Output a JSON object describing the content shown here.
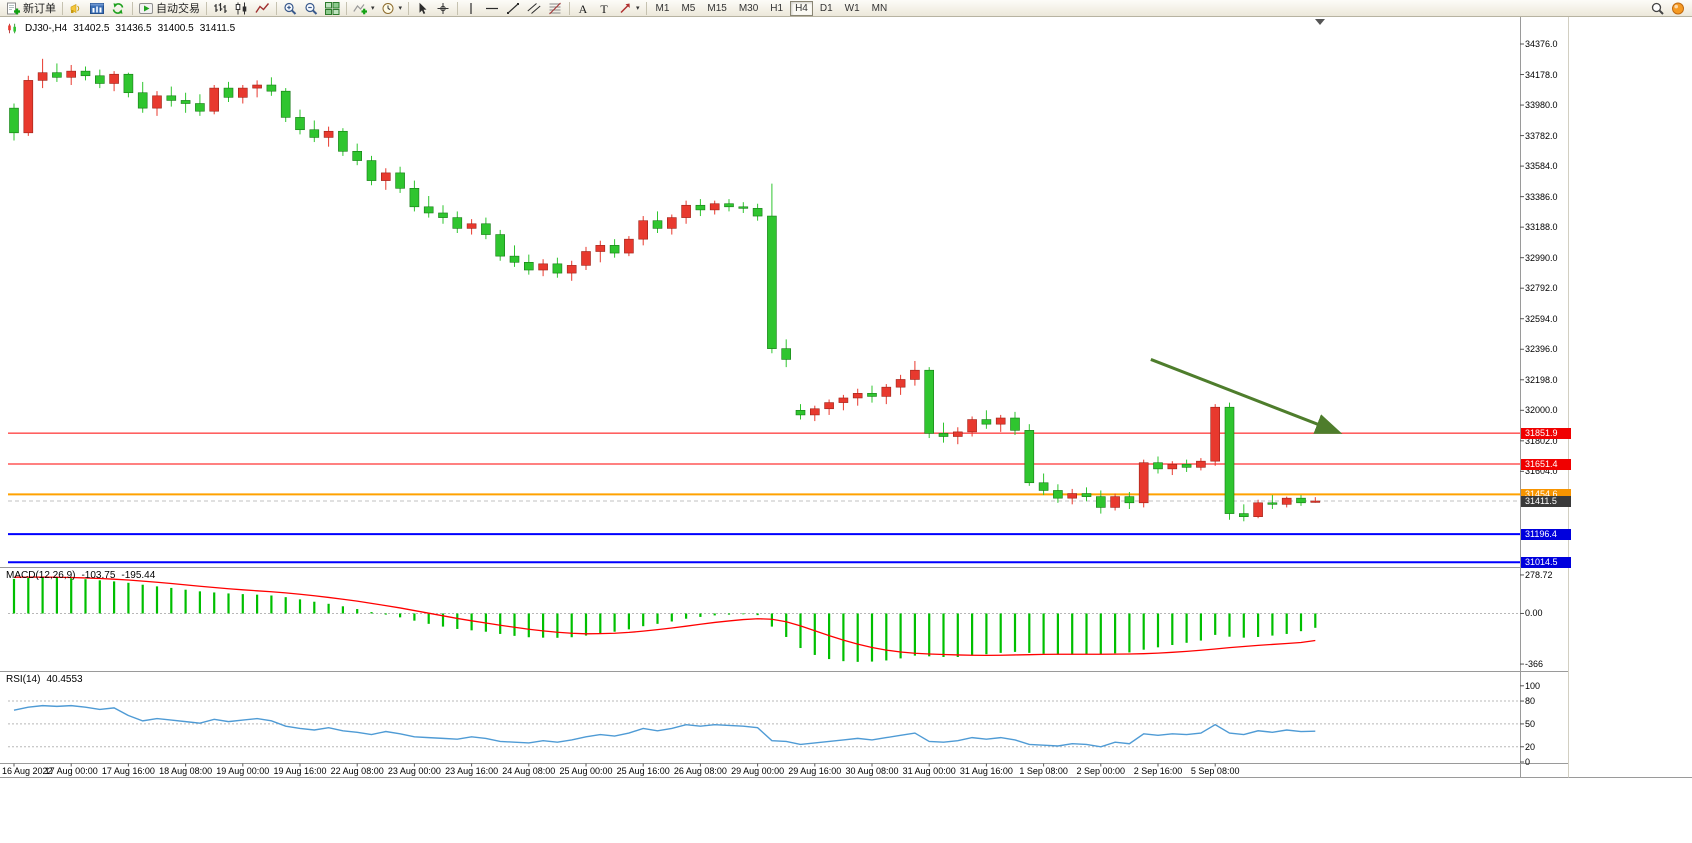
{
  "toolbar": {
    "new_order_label": "新订单",
    "auto_trading_label": "自动交易",
    "left_icons": [
      "megaphone-icon",
      "chart-window-icon",
      "refresh-icon"
    ],
    "chart_type_icons": [
      "ohlc-bars-icon",
      "candlestick-icon",
      "line-chart-icon"
    ],
    "zoom_icons": [
      "zoom-in-icon",
      "zoom-out-icon",
      "tile-windows-icon"
    ],
    "tool_icons": [
      "indicators-icon",
      "clock-icon",
      "|",
      "cursor-icon",
      "crosshair-icon",
      "|",
      "vertical-line-icon",
      "horizontal-line-icon",
      "trendline-icon",
      "channel-icon",
      "fibonacci-icon",
      "|",
      "text-icon",
      "label-icon",
      "arrows-icon"
    ],
    "caret_icons": [
      "indicators-icon",
      "clock-icon",
      "arrows-icon"
    ],
    "timeframes": [
      "M1",
      "M5",
      "M15",
      "M30",
      "H1",
      "H4",
      "D1",
      "W1",
      "MN"
    ],
    "active_timeframe": "H4",
    "right_icons": [
      "search-icon",
      "community-icon"
    ]
  },
  "chart_header": {
    "symbol_period": "DJ30-,H4",
    "open": "31402.5",
    "high": "31436.5",
    "low": "31400.5",
    "close": "31411.5"
  },
  "macd_header": {
    "name": "MACD(12,26,9)",
    "main_value": "-103.75",
    "signal_value": "-195.44"
  },
  "rsi_header": {
    "name": "RSI(14)",
    "value": "40.4553"
  },
  "chart_data": {
    "type": "candlestick",
    "symbol": "DJ30-",
    "period": "H4",
    "candles": [
      [
        33960,
        33990,
        33750,
        33800
      ],
      [
        33800,
        34170,
        33780,
        34140
      ],
      [
        34140,
        34280,
        34090,
        34190
      ],
      [
        34190,
        34250,
        34130,
        34160
      ],
      [
        34160,
        34240,
        34110,
        34200
      ],
      [
        34200,
        34230,
        34140,
        34170
      ],
      [
        34170,
        34210,
        34090,
        34120
      ],
      [
        34120,
        34200,
        34070,
        34180
      ],
      [
        34180,
        34190,
        34030,
        34060
      ],
      [
        34060,
        34130,
        33930,
        33960
      ],
      [
        33960,
        34070,
        33910,
        34040
      ],
      [
        34040,
        34100,
        33970,
        34010
      ],
      [
        34010,
        34060,
        33930,
        33990
      ],
      [
        33990,
        34050,
        33910,
        33940
      ],
      [
        33940,
        34110,
        33920,
        34090
      ],
      [
        34090,
        34130,
        34000,
        34030
      ],
      [
        34030,
        34110,
        33990,
        34090
      ],
      [
        34090,
        34140,
        34030,
        34110
      ],
      [
        34110,
        34160,
        34040,
        34070
      ],
      [
        34070,
        34090,
        33870,
        33900
      ],
      [
        33900,
        33950,
        33790,
        33820
      ],
      [
        33820,
        33880,
        33740,
        33770
      ],
      [
        33770,
        33840,
        33710,
        33810
      ],
      [
        33810,
        33830,
        33650,
        33680
      ],
      [
        33680,
        33730,
        33590,
        33620
      ],
      [
        33620,
        33650,
        33460,
        33490
      ],
      [
        33490,
        33570,
        33430,
        33540
      ],
      [
        33540,
        33580,
        33410,
        33440
      ],
      [
        33440,
        33490,
        33290,
        33320
      ],
      [
        33320,
        33390,
        33250,
        33280
      ],
      [
        33280,
        33330,
        33210,
        33250
      ],
      [
        33250,
        33290,
        33150,
        33180
      ],
      [
        33180,
        33240,
        33140,
        33210
      ],
      [
        33210,
        33250,
        33110,
        33140
      ],
      [
        33140,
        33170,
        32970,
        33000
      ],
      [
        33000,
        33070,
        32930,
        32960
      ],
      [
        32960,
        33010,
        32880,
        32910
      ],
      [
        32910,
        32980,
        32870,
        32950
      ],
      [
        32950,
        32990,
        32860,
        32890
      ],
      [
        32890,
        32970,
        32840,
        32940
      ],
      [
        32940,
        33060,
        32910,
        33030
      ],
      [
        33030,
        33100,
        32960,
        33070
      ],
      [
        33070,
        33110,
        32990,
        33020
      ],
      [
        33020,
        33130,
        33000,
        33110
      ],
      [
        33110,
        33260,
        33070,
        33230
      ],
      [
        33230,
        33290,
        33150,
        33180
      ],
      [
        33180,
        33270,
        33140,
        33250
      ],
      [
        33250,
        33360,
        33210,
        33330
      ],
      [
        33330,
        33370,
        33260,
        33300
      ],
      [
        33300,
        33360,
        33270,
        33340
      ],
      [
        33340,
        33370,
        33290,
        33320
      ],
      [
        33320,
        33350,
        33280,
        33310
      ],
      [
        33310,
        33340,
        33230,
        33260
      ],
      [
        33260,
        33470,
        32370,
        32400
      ],
      [
        32400,
        32460,
        32280,
        32330
      ],
      [
        32000,
        32040,
        31940,
        31970
      ],
      [
        31970,
        32030,
        31930,
        32010
      ],
      [
        32010,
        32070,
        31970,
        32050
      ],
      [
        32050,
        32100,
        32000,
        32080
      ],
      [
        32080,
        32140,
        32030,
        32110
      ],
      [
        32110,
        32160,
        32050,
        32090
      ],
      [
        32090,
        32170,
        32040,
        32150
      ],
      [
        32150,
        32230,
        32100,
        32200
      ],
      [
        32200,
        32320,
        32160,
        32260
      ],
      [
        32260,
        32280,
        31820,
        31850
      ],
      [
        31850,
        31920,
        31790,
        31830
      ],
      [
        31830,
        31890,
        31780,
        31860
      ],
      [
        31860,
        31960,
        31830,
        31940
      ],
      [
        31940,
        32000,
        31880,
        31910
      ],
      [
        31910,
        31970,
        31860,
        31950
      ],
      [
        31950,
        31990,
        31840,
        31870
      ],
      [
        31870,
        31910,
        31510,
        31530
      ],
      [
        31530,
        31590,
        31450,
        31480
      ],
      [
        31480,
        31520,
        31400,
        31430
      ],
      [
        31430,
        31490,
        31390,
        31460
      ],
      [
        31460,
        31500,
        31410,
        31440
      ],
      [
        31440,
        31480,
        31330,
        31370
      ],
      [
        31370,
        31460,
        31350,
        31440
      ],
      [
        31440,
        31470,
        31360,
        31400
      ],
      [
        31400,
        31680,
        31370,
        31660
      ],
      [
        31660,
        31700,
        31590,
        31620
      ],
      [
        31620,
        31670,
        31580,
        31650
      ],
      [
        31650,
        31680,
        31600,
        31630
      ],
      [
        31630,
        31690,
        31610,
        31670
      ],
      [
        31670,
        32040,
        31640,
        32020
      ],
      [
        32020,
        32050,
        31290,
        31330
      ],
      [
        31330,
        31390,
        31280,
        31310
      ],
      [
        31310,
        31420,
        31300,
        31400
      ],
      [
        31400,
        31450,
        31360,
        31390
      ],
      [
        31390,
        31440,
        31370,
        31430
      ],
      [
        31430,
        31450,
        31380,
        31400
      ],
      [
        31402.5,
        31436.5,
        31400.5,
        31411.5
      ]
    ],
    "time_labels": [
      "16 Aug 2022",
      "17 Aug 00:00",
      "17 Aug 16:00",
      "18 Aug 08:00",
      "19 Aug 00:00",
      "19 Aug 16:00",
      "22 Aug 08:00",
      "23 Aug 00:00",
      "23 Aug 16:00",
      "24 Aug 08:00",
      "25 Aug 00:00",
      "25 Aug 16:00",
      "26 Aug 08:00",
      "29 Aug 00:00",
      "29 Aug 16:00",
      "30 Aug 08:00",
      "31 Aug 00:00",
      "31 Aug 16:00",
      "1 Sep 08:00",
      "2 Sep 00:00",
      "2 Sep 16:00",
      "5 Sep 08:00"
    ],
    "label_every_n_candles": 4,
    "price_ticks": [
      "34376.0",
      "34178.0",
      "33980.0",
      "33782.0",
      "33584.0",
      "33386.0",
      "33188.0",
      "32990.0",
      "32792.0",
      "32594.0",
      "32396.0",
      "32198.0",
      "32000.0",
      "31802.0",
      "31604.0"
    ],
    "main_range": {
      "max": 34402,
      "min": 30990
    },
    "current_price": {
      "value": 31411.5,
      "label": "31411.5",
      "badge_color": "#3a3a3a"
    },
    "hlines": [
      {
        "price": 31851.9,
        "label": "31851.9",
        "color": "#ff0000",
        "badge_color": "#f00000",
        "width": 1
      },
      {
        "price": 31651.4,
        "label": "31651.4",
        "color": "#ff0000",
        "badge_color": "#f00000",
        "width": 1
      },
      {
        "price": 31454.6,
        "label": "31454.6",
        "color": "#ffa200",
        "badge_color": "#f79400",
        "width": 2
      },
      {
        "price": 31196.4,
        "label": "31196.4",
        "color": "#0000ff",
        "badge_color": "#0000dd",
        "width": 2
      },
      {
        "price": 31014.5,
        "label": "31014.5",
        "color": "#0000ff",
        "badge_color": "#0000dd",
        "width": 2
      }
    ],
    "arrow": {
      "from_index": 79.5,
      "from_price": 32330,
      "to_index": 92.6,
      "to_price": 31858,
      "color": "#4e7d2c"
    },
    "macd": {
      "histogram": [
        250,
        258,
        262,
        260,
        255,
        248,
        240,
        232,
        222,
        208,
        196,
        185,
        172,
        160,
        152,
        145,
        140,
        136,
        130,
        118,
        102,
        85,
        70,
        52,
        32,
        10,
        -8,
        -28,
        -52,
        -75,
        -95,
        -112,
        -122,
        -132,
        -148,
        -162,
        -172,
        -175,
        -176,
        -172,
        -160,
        -145,
        -132,
        -115,
        -92,
        -75,
        -58,
        -38,
        -25,
        -14,
        -8,
        -6,
        -12,
        -95,
        -170,
        -250,
        -300,
        -330,
        -345,
        -350,
        -348,
        -340,
        -325,
        -305,
        -310,
        -315,
        -315,
        -305,
        -295,
        -285,
        -278,
        -285,
        -292,
        -298,
        -298,
        -295,
        -295,
        -288,
        -282,
        -262,
        -245,
        -228,
        -212,
        -196,
        -155,
        -168,
        -175,
        -170,
        -160,
        -148,
        -128,
        -103.75
      ],
      "signal": [
        262,
        263,
        263,
        262,
        260,
        257,
        253,
        248,
        242,
        234,
        226,
        217,
        207,
        197,
        188,
        179,
        171,
        164,
        157,
        149,
        139,
        128,
        116,
        103,
        89,
        73,
        57,
        40,
        21,
        2,
        -17,
        -36,
        -53,
        -69,
        -85,
        -100,
        -114,
        -126,
        -136,
        -143,
        -147,
        -146,
        -143,
        -137,
        -128,
        -117,
        -105,
        -92,
        -78,
        -65,
        -54,
        -44,
        -38,
        -42,
        -60,
        -90,
        -125,
        -160,
        -193,
        -222,
        -246,
        -265,
        -279,
        -288,
        -293,
        -297,
        -300,
        -302,
        -303,
        -302,
        -300,
        -298,
        -296,
        -295,
        -295,
        -295,
        -295,
        -294,
        -293,
        -291,
        -287,
        -281,
        -274,
        -266,
        -257,
        -247,
        -239,
        -231,
        -224,
        -217,
        -210,
        -195.44
      ],
      "ticks": [
        {
          "value": 278.72,
          "label": "278.72"
        },
        {
          "value": 0,
          "label": "0.00"
        },
        {
          "value": -366,
          "label": "-366"
        }
      ],
      "range": {
        "max": 300,
        "min": -380
      },
      "hist_color": "#00bf00",
      "signal_color": "#ff0000"
    },
    "rsi": {
      "values": [
        68,
        72,
        74,
        73,
        74,
        72,
        69,
        71,
        61,
        54,
        57,
        55,
        53,
        51,
        56,
        53,
        55,
        57,
        54,
        47,
        44,
        42,
        45,
        41,
        39,
        36,
        40,
        37,
        33,
        32,
        31,
        30,
        33,
        31,
        27,
        26,
        25,
        28,
        26,
        29,
        33,
        36,
        34,
        38,
        44,
        41,
        44,
        49,
        47,
        49,
        48,
        47,
        45,
        28,
        27,
        23,
        25,
        27,
        29,
        31,
        29,
        32,
        35,
        38,
        27,
        26,
        28,
        32,
        30,
        32,
        29,
        23,
        22,
        21,
        24,
        23,
        20,
        26,
        24,
        37,
        35,
        37,
        36,
        38,
        49,
        38,
        36,
        41,
        39,
        42,
        40,
        40.4553
      ],
      "levels": [
        80,
        50,
        20
      ],
      "ticks": [
        {
          "value": 100,
          "label": "100"
        },
        {
          "value": 80,
          "label": "80"
        },
        {
          "value": 50,
          "label": "50"
        },
        {
          "value": 20,
          "label": "20"
        },
        {
          "value": 0,
          "label": "0"
        }
      ],
      "range": {
        "max": 105,
        "min": 0
      },
      "color": "#4f9bd5"
    },
    "colors": {
      "bull": "#e8392e",
      "bear": "#2fc52f",
      "bull_edge": "#9c2218",
      "bear_edge": "#157a15",
      "bg": "#ffffff",
      "border": "#9a9a9a",
      "bid_line": "#c0c0c0"
    }
  }
}
